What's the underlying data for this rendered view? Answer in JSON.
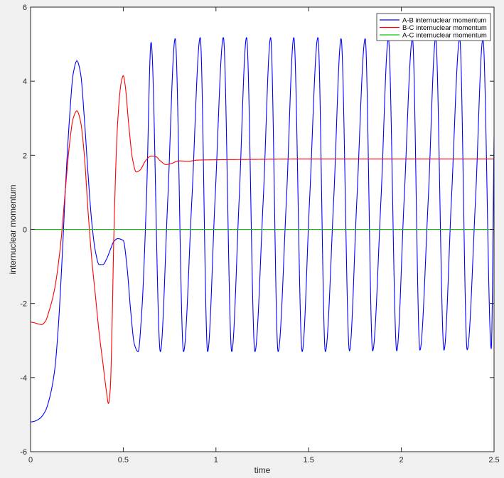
{
  "chart_data": {
    "type": "line",
    "xlabel": "time",
    "ylabel": "internuclear momentum",
    "xlim": [
      0,
      2.5
    ],
    "ylim": [
      -6,
      6
    ],
    "grid": false,
    "legend_placement": "top-right",
    "xticks": [
      0,
      0.5,
      1,
      1.5,
      2,
      2.5
    ],
    "xtick_labels": [
      "0",
      "0.5",
      "1",
      "1.5",
      "2",
      "2.5"
    ],
    "yticks": [
      -6,
      -4,
      -2,
      0,
      2,
      4,
      6
    ],
    "ytick_labels": [
      "-6",
      "-4",
      "-2",
      "0",
      "2",
      "4",
      "6"
    ],
    "series": [
      {
        "name": "A-B internuclear momentum",
        "color": "#0000ff",
        "x": [
          0,
          0.02,
          0.05,
          0.08,
          0.1,
          0.13,
          0.15,
          0.17,
          0.19,
          0.21,
          0.23,
          0.25,
          0.27,
          0.29,
          0.31,
          0.33,
          0.35,
          0.37,
          0.39,
          0.41,
          0.43,
          0.45,
          0.47,
          0.5,
          0.52,
          0.54,
          0.56,
          0.58,
          0.6,
          0.625,
          0.65,
          0.7,
          0.74,
          0.78,
          0.825,
          0.87,
          0.915,
          0.955,
          0.995,
          1.04,
          1.085,
          1.125,
          1.165,
          1.21,
          1.255,
          1.295,
          1.335,
          1.38,
          1.42,
          1.465,
          1.505,
          1.55,
          1.59,
          1.635,
          1.675,
          1.72,
          1.76,
          1.805,
          1.845,
          1.89,
          1.93,
          1.975,
          2.015,
          2.06,
          2.1,
          2.145,
          2.185,
          2.23,
          2.27,
          2.315,
          2.355,
          2.4,
          2.44,
          2.485,
          2.5
        ],
        "y": [
          -5.2,
          -5.18,
          -5.1,
          -4.9,
          -4.6,
          -3.8,
          -2.6,
          -0.8,
          1.3,
          3.0,
          4.2,
          4.55,
          4.2,
          3.0,
          1.5,
          0.2,
          -0.6,
          -0.95,
          -0.95,
          -0.8,
          -0.55,
          -0.32,
          -0.25,
          -0.3,
          -1.0,
          -2.2,
          -3.1,
          -3.3,
          -2.2,
          0.8,
          5.05,
          -3.3,
          0.8,
          5.15,
          -3.3,
          0.8,
          5.18,
          -3.3,
          0.8,
          5.18,
          -3.3,
          0.8,
          5.18,
          -3.3,
          0.8,
          5.18,
          -3.3,
          0.8,
          5.18,
          -3.3,
          0.8,
          5.18,
          -3.3,
          0.8,
          5.15,
          -3.28,
          0.8,
          5.15,
          -3.28,
          0.8,
          5.15,
          -3.28,
          0.8,
          5.15,
          -3.26,
          0.8,
          5.15,
          -3.26,
          0.8,
          5.15,
          -3.25,
          0.8,
          5.15,
          -3.22,
          2.5
        ]
      },
      {
        "name": "B-C internuclear momentum",
        "color": "#ff0000",
        "x": [
          0,
          0.02,
          0.04,
          0.06,
          0.08,
          0.1,
          0.13,
          0.16,
          0.19,
          0.21,
          0.23,
          0.25,
          0.27,
          0.29,
          0.31,
          0.33,
          0.35,
          0.37,
          0.39,
          0.41,
          0.42,
          0.43,
          0.44,
          0.45,
          0.47,
          0.49,
          0.5,
          0.51,
          0.53,
          0.55,
          0.57,
          0.59,
          0.62,
          0.65,
          0.67,
          0.7,
          0.73,
          0.76,
          0.8,
          0.85,
          0.9,
          1.0,
          1.2,
          1.5,
          2.0,
          2.5
        ],
        "y": [
          -2.5,
          -2.52,
          -2.55,
          -2.57,
          -2.48,
          -2.2,
          -1.6,
          -0.5,
          1.2,
          2.3,
          3.0,
          3.2,
          2.9,
          2.0,
          0.5,
          -0.8,
          -1.8,
          -2.8,
          -3.6,
          -4.4,
          -4.7,
          -4.3,
          -2.5,
          0.0,
          2.9,
          4.0,
          4.15,
          3.9,
          2.8,
          1.9,
          1.55,
          1.6,
          1.85,
          1.98,
          1.98,
          1.85,
          1.75,
          1.78,
          1.85,
          1.84,
          1.87,
          1.88,
          1.89,
          1.9,
          1.9,
          1.9
        ]
      },
      {
        "name": "A-C internuclear momentum",
        "color": "#00cc00",
        "x": [
          0,
          2.5
        ],
        "y": [
          0,
          0
        ]
      }
    ]
  }
}
